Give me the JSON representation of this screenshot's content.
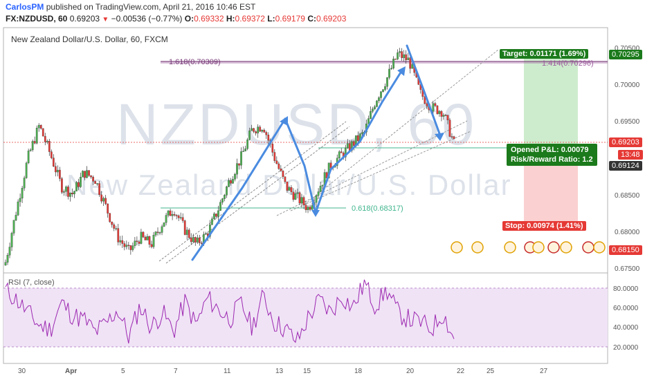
{
  "header": {
    "author": "CarlosPM",
    "published_text": "published on TradingView.com, April 21, 2016 10:46 EST",
    "symbol": "FX:NZDUSD, 60",
    "last": "0.69203",
    "change": "−0.00536 (−0.77%)",
    "o_label": "O:",
    "o_value": "0.69332",
    "h_label": "H:",
    "h_value": "0.69372",
    "l_label": "L:",
    "l_value": "0.69179",
    "c_label": "C:",
    "c_value": "0.69203"
  },
  "chart": {
    "title": "New Zealand Dollar/U.S. Dollar, 60, FXCM",
    "watermark_symbol": "NZDUSD, 60",
    "watermark_name": "New Zealand Dollar/U.S. Dollar",
    "fib_top_label": "1.618(0.70309)",
    "fib_top_right_label": "1.414(0.70296)",
    "fib_bottom_label": "0.618(0.68317)",
    "target_label": "Target: 0.01171 (1.69%)",
    "opened_pl": "Opened P&L: 0.00079",
    "risk_reward": "Risk/Reward Ratio: 1.2",
    "stop_label": "Stop: 0.00974 (1.41%)",
    "price_ticks": [
      "0.70500",
      "0.70000",
      "0.69500",
      "0.68500",
      "0.68000",
      "0.67500"
    ],
    "price_tags": [
      {
        "text": "0.70295",
        "color": "#1b7a1b"
      },
      {
        "text": "0.69203",
        "color": "#e53935"
      },
      {
        "text": "13:48",
        "color": "#e53935"
      },
      {
        "text": "0.69124",
        "color": "#333333"
      },
      {
        "text": "0.68150",
        "color": "#e53935"
      }
    ],
    "x_ticks": [
      "30",
      "Apr",
      "5",
      "7",
      "11",
      "13",
      "15",
      "18",
      "20",
      "22",
      "25",
      "27"
    ]
  },
  "rsi": {
    "title": "RSI (7, close)",
    "ticks": [
      "80.0000",
      "60.0000",
      "40.0000",
      "20.0000"
    ]
  },
  "colors": {
    "up": "#4caf50",
    "down": "#e53935",
    "wick": "#333333",
    "arrow": "#4a8be0",
    "rsi_line": "#9c27b0",
    "rsi_band": "#f0e3f6",
    "target_zone": "#cdeccd",
    "stop_zone": "#fbd0d0"
  },
  "chart_data": {
    "type": "candlestick",
    "title": "New Zealand Dollar/U.S. Dollar, 60, FXCM",
    "ylim": [
      0.6745,
      0.706
    ],
    "close_path": [
      0.6755,
      0.683,
      0.69,
      0.6945,
      0.6905,
      0.686,
      0.685,
      0.688,
      0.687,
      0.683,
      0.679,
      0.677,
      0.679,
      0.678,
      0.681,
      0.683,
      0.68,
      0.678,
      0.6795,
      0.683,
      0.687,
      0.69,
      0.694,
      0.6945,
      0.69,
      0.686,
      0.6845,
      0.683,
      0.686,
      0.689,
      0.6905,
      0.692,
      0.6935,
      0.698,
      0.701,
      0.7045,
      0.7035,
      0.699,
      0.697,
      0.6965,
      0.692
    ],
    "rsi_path": [
      78,
      68,
      55,
      42,
      38,
      65,
      52,
      48,
      35,
      44,
      58,
      30,
      62,
      40,
      55,
      36,
      66,
      42,
      70,
      58,
      48,
      64,
      40,
      72,
      45,
      38,
      25,
      50,
      68,
      55,
      72,
      60,
      85,
      62,
      78,
      55,
      48,
      45,
      38,
      55,
      28
    ]
  }
}
